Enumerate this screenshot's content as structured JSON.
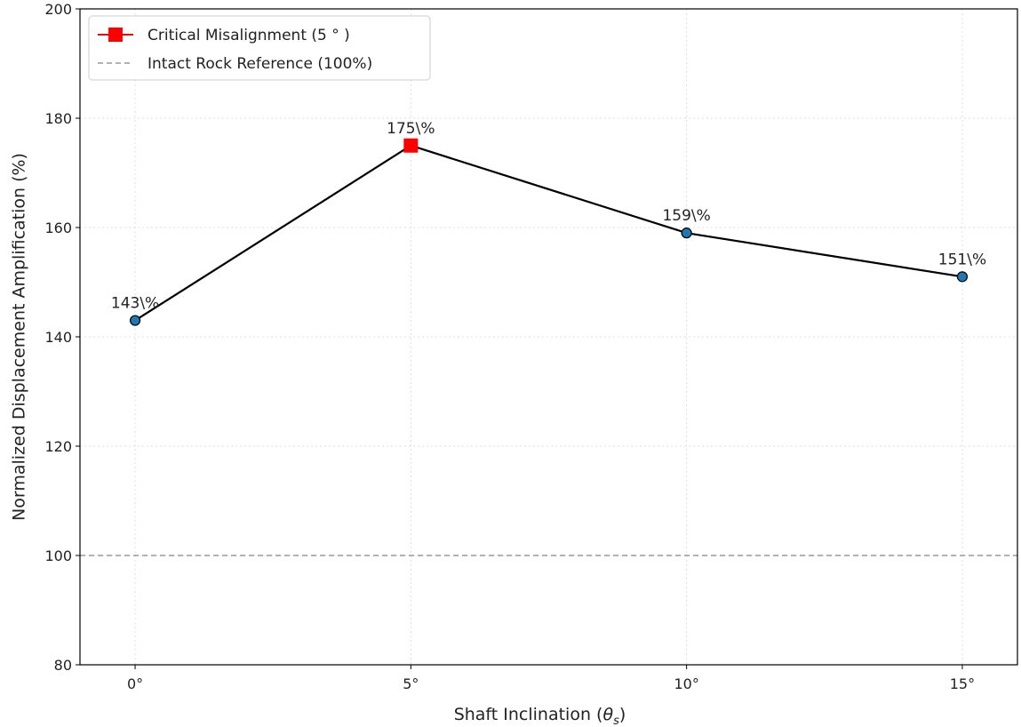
{
  "chart_data": {
    "type": "line",
    "x_categories": [
      "0°",
      "5°",
      "10°",
      "15°"
    ],
    "x": [
      0,
      5,
      10,
      15
    ],
    "series": [
      {
        "values": [
          143,
          175,
          159,
          151
        ],
        "data_labels": [
          "143\\%",
          "175\\%",
          "159\\%",
          "151\\%"
        ],
        "color": "#000000",
        "marker_color": "#1f77b4"
      }
    ],
    "highlight": {
      "name": "Critical Misalignment (5 ° )",
      "x": 5,
      "y": 175,
      "color": "#ff0000",
      "marker": "square"
    },
    "reference_line": {
      "name": "Intact Rock Reference (100%)",
      "y": 100,
      "color": "#999999",
      "style": "dashed"
    },
    "xlabel_main": "Shaft Inclination (",
    "xlabel_symbol": "θ",
    "xlabel_sub": "s",
    "xlabel_close": ")",
    "ylabel": "Normalized Displacement Amplification (%)",
    "ylim": [
      80,
      200
    ],
    "xlim": [
      -1,
      16
    ],
    "yticks": [
      80,
      100,
      120,
      140,
      160,
      180,
      200
    ],
    "grid": true,
    "legend_position": "top-left"
  }
}
